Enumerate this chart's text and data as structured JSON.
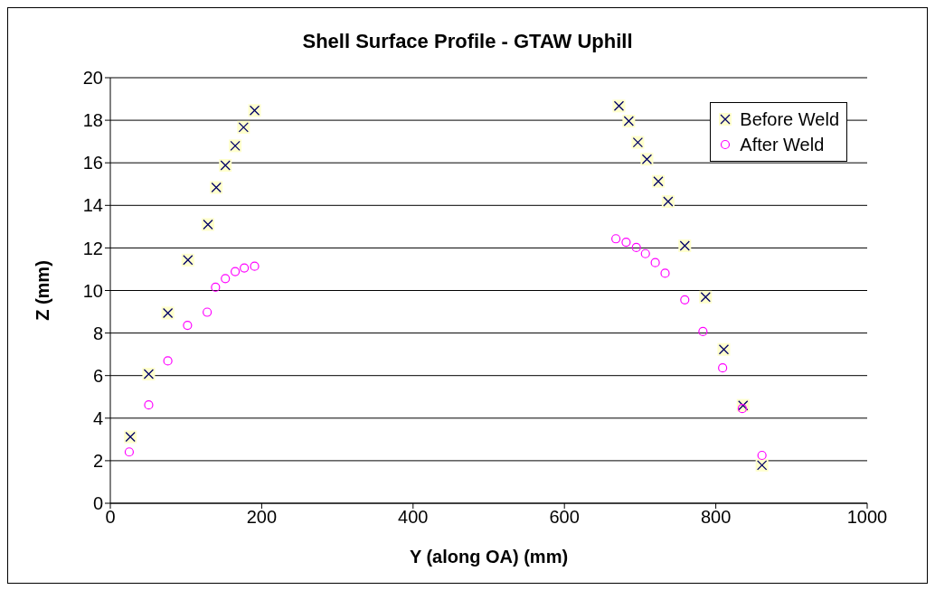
{
  "chart_data": {
    "type": "scatter",
    "title": "Shell Surface Profile - GTAW Uphill",
    "xlabel": "Y (along OA) (mm)",
    "ylabel": "Z (mm)",
    "xlim": [
      0,
      1000
    ],
    "xticks": [
      0,
      200,
      400,
      600,
      800,
      1000
    ],
    "ylim": [
      0,
      20
    ],
    "yticks": [
      0,
      2,
      4,
      6,
      8,
      10,
      12,
      14,
      16,
      18,
      20
    ],
    "grid": "y",
    "legend": "top right",
    "series": [
      {
        "name": "Before Weld",
        "color": "#000066",
        "marker": "cross",
        "x": [
          26.5,
          50.7,
          76,
          102.5,
          129,
          140,
          152,
          165,
          176,
          190.6,
          672,
          685,
          697,
          709,
          724,
          737,
          759,
          786.5,
          810.6,
          836,
          861
        ],
        "values": [
          3.12,
          6.07,
          8.94,
          11.43,
          13.1,
          14.84,
          15.88,
          16.8,
          17.67,
          18.46,
          18.67,
          17.96,
          16.96,
          16.17,
          15.13,
          14.18,
          12.1,
          9.69,
          7.23,
          4.6,
          1.79
        ]
      },
      {
        "name": "After Weld",
        "color": "#ff00ff",
        "marker": "circle",
        "x": [
          25,
          50.7,
          76,
          102,
          128,
          139,
          152,
          165,
          177,
          190.6,
          668,
          681.5,
          695,
          707,
          720,
          733,
          759,
          783,
          809,
          835,
          861
        ],
        "values": [
          2.41,
          4.62,
          6.69,
          8.36,
          8.98,
          10.15,
          10.56,
          10.89,
          11.06,
          11.14,
          12.43,
          12.27,
          12.02,
          11.73,
          11.31,
          10.81,
          9.56,
          8.07,
          6.36,
          4.45,
          2.25
        ]
      }
    ]
  }
}
